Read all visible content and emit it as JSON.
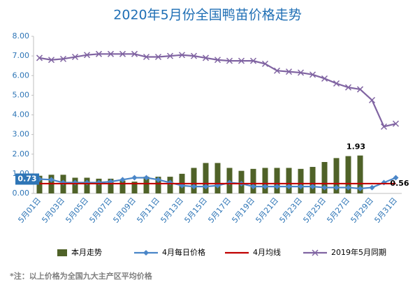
{
  "chart_data": {
    "type": "bar",
    "title": "2020年5月份全国鸭苗价格走势",
    "categories": [
      "5月01日",
      null,
      "5月03日",
      null,
      "5月05日",
      null,
      "5月07日",
      null,
      "5月09日",
      null,
      "5月11日",
      null,
      "5月13日",
      null,
      "5月15日",
      null,
      "5月17日",
      null,
      "5月19日",
      null,
      "5月21日",
      null,
      "5月23日",
      null,
      "5月25日",
      null,
      "5月27日",
      null,
      "5月29日",
      null,
      "5月31日"
    ],
    "series": [
      {
        "name": "本月走势",
        "type": "bar",
        "color": "#4f6228",
        "values": [
          0.9,
          0.95,
          0.95,
          0.8,
          0.8,
          0.75,
          0.75,
          0.65,
          0.6,
          0.85,
          0.85,
          0.85,
          1.0,
          1.3,
          1.55,
          1.55,
          1.3,
          1.15,
          1.25,
          1.3,
          1.3,
          1.3,
          1.25,
          1.35,
          1.6,
          1.8,
          1.9,
          1.93,
          null,
          null,
          null
        ]
      },
      {
        "name": "4月每日价格",
        "type": "line",
        "marker": "diamond",
        "color": "#4a86c8",
        "values": [
          0.73,
          0.7,
          0.55,
          0.55,
          0.55,
          0.55,
          0.6,
          0.7,
          0.8,
          0.8,
          0.7,
          0.55,
          0.4,
          0.35,
          0.35,
          0.4,
          0.55,
          0.5,
          0.35,
          0.35,
          0.35,
          0.35,
          0.35,
          0.35,
          0.3,
          0.3,
          0.3,
          0.25,
          0.3,
          0.55,
          0.8
        ]
      },
      {
        "name": "4月均线",
        "type": "line",
        "marker": "none",
        "color": "#c00000",
        "values": [
          0.5,
          0.5,
          0.5,
          0.5,
          0.5,
          0.5,
          0.5,
          0.5,
          0.5,
          0.5,
          0.5,
          0.5,
          0.5,
          0.5,
          0.5,
          0.5,
          0.5,
          0.5,
          0.5,
          0.5,
          0.5,
          0.5,
          0.5,
          0.5,
          0.5,
          0.5,
          0.5,
          0.5,
          0.5,
          0.5,
          0.5
        ]
      },
      {
        "name": "2019年5月同期",
        "type": "line",
        "marker": "x",
        "color": "#8064a2",
        "values": [
          6.9,
          6.8,
          6.85,
          6.95,
          7.05,
          7.1,
          7.1,
          7.1,
          7.1,
          6.95,
          6.95,
          7.0,
          7.05,
          7.0,
          6.9,
          6.8,
          6.75,
          6.75,
          6.75,
          6.6,
          6.25,
          6.2,
          6.15,
          6.05,
          5.85,
          5.6,
          5.4,
          5.3,
          4.75,
          3.4,
          3.55
        ]
      }
    ],
    "ylim": [
      0,
      8
    ],
    "yticks": [
      {
        "value": 0,
        "label": "0.00"
      },
      {
        "value": 1,
        "label": "1.00"
      },
      {
        "value": 2,
        "label": "2.00"
      },
      {
        "value": 3,
        "label": "3.00"
      },
      {
        "value": 4,
        "label": "4.00"
      },
      {
        "value": 5,
        "label": "5.00"
      },
      {
        "value": 6,
        "label": "6.00"
      },
      {
        "value": 7,
        "label": "7.00"
      },
      {
        "value": 8,
        "label": "8.00"
      }
    ],
    "grid": false,
    "legend": "bottom",
    "annotations": [
      "1.93",
      "0.73",
      "0.56"
    ],
    "footnote": "*注：以上价格为全国九大主产区平均价格"
  }
}
